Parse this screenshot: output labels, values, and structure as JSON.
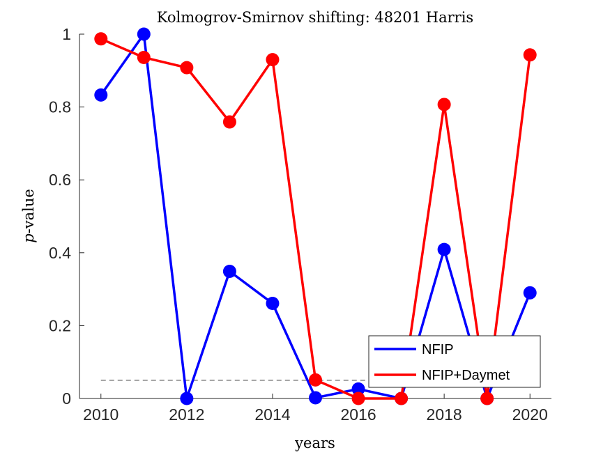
{
  "chart_data": {
    "type": "line",
    "title": "Kolmogrov-Smirnov shifting: 48201 Harris",
    "xlabel": "years",
    "ylabel_italic": "p",
    "ylabel_rest": "-value",
    "xlim": [
      2009.5,
      2020.5
    ],
    "ylim": [
      0,
      1
    ],
    "x_ticks": [
      2010,
      2012,
      2014,
      2016,
      2018,
      2020
    ],
    "y_ticks": [
      0,
      0.2,
      0.4,
      0.6,
      0.8,
      1
    ],
    "x_tick_labels": [
      "2010",
      "2012",
      "2014",
      "2016",
      "2018",
      "2020"
    ],
    "y_tick_labels": [
      "0",
      "0.2",
      "0.4",
      "0.6",
      "0.8",
      "1"
    ],
    "x": [
      2010,
      2011,
      2012,
      2013,
      2014,
      2015,
      2016,
      2017,
      2018,
      2019,
      2020
    ],
    "series": [
      {
        "name": "NFIP",
        "color": "#0000ff",
        "values": [
          0.833,
          1.0,
          0.0,
          0.349,
          0.261,
          0.002,
          0.026,
          0.0,
          0.409,
          0.0,
          0.29
        ]
      },
      {
        "name": "NFIP+Daymet",
        "color": "#ff0000",
        "values": [
          0.987,
          0.936,
          0.908,
          0.759,
          0.93,
          0.051,
          0.0,
          0.0,
          0.807,
          0.0,
          0.943
        ]
      }
    ],
    "reference_line": {
      "y": 0.05,
      "style": "dashed",
      "color": "#666666"
    },
    "grid": false,
    "legend_position": "bottom-right"
  }
}
